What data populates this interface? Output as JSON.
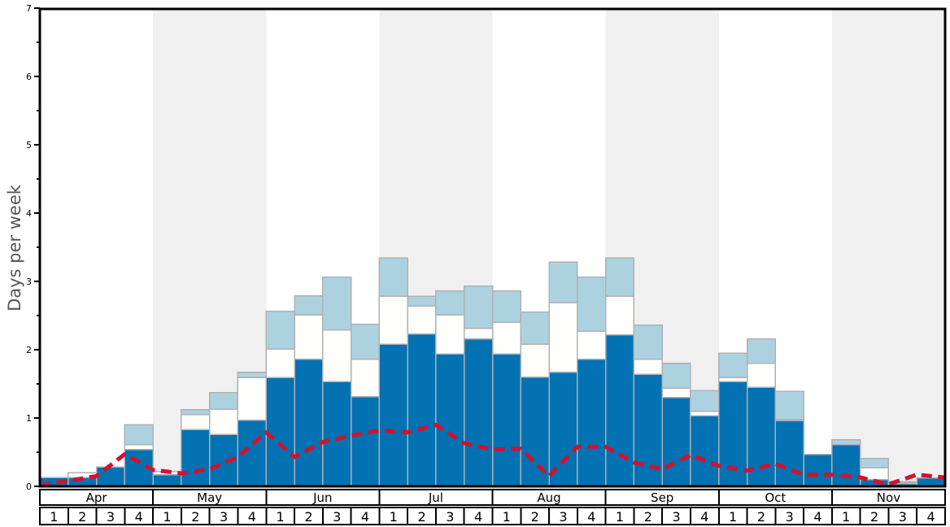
{
  "chart": {
    "ylabel": "Days per week",
    "colors": {
      "dark_blue": "#0272b2",
      "white_band": "#fefefc",
      "pale_blue": "#acd2e0",
      "bar_border": "#b0b0b4",
      "band_gray": "#f0f0f0",
      "red_line": "#d11230",
      "axis_black": "#000000",
      "label_gray": "#555555",
      "row_fill": "#ffffff"
    }
  },
  "chart_data": {
    "type": "bar",
    "stacked": true,
    "title": "",
    "xlabel": "",
    "ylabel": "Days per week",
    "ylim": [
      0,
      7
    ],
    "yticks": [
      0,
      1,
      2,
      3,
      4,
      5,
      6,
      7
    ],
    "ytick_labels": [
      "0",
      "1",
      "2",
      "3",
      "4",
      "5",
      "6",
      "7"
    ],
    "minor_ytick_step": 0.5,
    "grid": false,
    "legend": "none",
    "months": [
      {
        "label": "Apr",
        "weeks": [
          "1",
          "2",
          "3",
          "4"
        ],
        "shaded": false
      },
      {
        "label": "May",
        "weeks": [
          "1",
          "2",
          "3",
          "4"
        ],
        "shaded": true
      },
      {
        "label": "Jun",
        "weeks": [
          "1",
          "2",
          "3",
          "4"
        ],
        "shaded": false
      },
      {
        "label": "Jul",
        "weeks": [
          "1",
          "2",
          "3",
          "4"
        ],
        "shaded": true
      },
      {
        "label": "Aug",
        "weeks": [
          "1",
          "2",
          "3",
          "4"
        ],
        "shaded": false
      },
      {
        "label": "Sep",
        "weeks": [
          "1",
          "2",
          "3",
          "4"
        ],
        "shaded": true
      },
      {
        "label": "Oct",
        "weeks": [
          "1",
          "2",
          "3",
          "4"
        ],
        "shaded": false
      },
      {
        "label": "Nov",
        "weeks": [
          "1",
          "2",
          "3",
          "4"
        ],
        "shaded": true
      }
    ],
    "bars": [
      {
        "month": "Apr",
        "week": "1",
        "dark_top": 0.13,
        "white_top": 0.13,
        "total": 0.13
      },
      {
        "month": "Apr",
        "week": "2",
        "dark_top": 0.13,
        "white_top": 0.2,
        "total": 0.2
      },
      {
        "month": "Apr",
        "week": "3",
        "dark_top": 0.28,
        "white_top": 0.28,
        "total": 0.28
      },
      {
        "month": "Apr",
        "week": "4",
        "dark_top": 0.54,
        "white_top": 0.61,
        "total": 0.9
      },
      {
        "month": "May",
        "week": "1",
        "dark_top": 0.17,
        "white_top": 0.22,
        "total": 0.22
      },
      {
        "month": "May",
        "week": "2",
        "dark_top": 0.83,
        "white_top": 1.05,
        "total": 1.12
      },
      {
        "month": "May",
        "week": "3",
        "dark_top": 0.76,
        "white_top": 1.13,
        "total": 1.37
      },
      {
        "month": "May",
        "week": "4",
        "dark_top": 0.97,
        "white_top": 1.59,
        "total": 1.67
      },
      {
        "month": "Jun",
        "week": "1",
        "dark_top": 1.59,
        "white_top": 2.01,
        "total": 2.56
      },
      {
        "month": "Jun",
        "week": "2",
        "dark_top": 1.86,
        "white_top": 2.51,
        "total": 2.79
      },
      {
        "month": "Jun",
        "week": "3",
        "dark_top": 1.53,
        "white_top": 2.29,
        "total": 3.06
      },
      {
        "month": "Jun",
        "week": "4",
        "dark_top": 1.31,
        "white_top": 1.86,
        "total": 2.37
      },
      {
        "month": "Jul",
        "week": "1",
        "dark_top": 2.08,
        "white_top": 2.78,
        "total": 3.34
      },
      {
        "month": "Jul",
        "week": "2",
        "dark_top": 2.23,
        "white_top": 2.64,
        "total": 2.78
      },
      {
        "month": "Jul",
        "week": "3",
        "dark_top": 1.94,
        "white_top": 2.51,
        "total": 2.86
      },
      {
        "month": "Jul",
        "week": "4",
        "dark_top": 2.16,
        "white_top": 2.31,
        "total": 2.93
      },
      {
        "month": "Aug",
        "week": "1",
        "dark_top": 1.94,
        "white_top": 2.4,
        "total": 2.86
      },
      {
        "month": "Aug",
        "week": "2",
        "dark_top": 1.6,
        "white_top": 2.08,
        "total": 2.55
      },
      {
        "month": "Aug",
        "week": "3",
        "dark_top": 1.67,
        "white_top": 2.69,
        "total": 3.28
      },
      {
        "month": "Aug",
        "week": "4",
        "dark_top": 1.86,
        "white_top": 2.27,
        "total": 3.06
      },
      {
        "month": "Sep",
        "week": "1",
        "dark_top": 2.22,
        "white_top": 2.78,
        "total": 3.34
      },
      {
        "month": "Sep",
        "week": "2",
        "dark_top": 1.64,
        "white_top": 1.86,
        "total": 2.36
      },
      {
        "month": "Sep",
        "week": "3",
        "dark_top": 1.3,
        "white_top": 1.44,
        "total": 1.8
      },
      {
        "month": "Sep",
        "week": "4",
        "dark_top": 1.03,
        "white_top": 1.1,
        "total": 1.4
      },
      {
        "month": "Oct",
        "week": "1",
        "dark_top": 1.53,
        "white_top": 1.59,
        "total": 1.95
      },
      {
        "month": "Oct",
        "week": "2",
        "dark_top": 1.45,
        "white_top": 1.8,
        "total": 2.16
      },
      {
        "month": "Oct",
        "week": "3",
        "dark_top": 0.96,
        "white_top": 0.98,
        "total": 1.39
      },
      {
        "month": "Oct",
        "week": "4",
        "dark_top": 0.47,
        "white_top": 0.47,
        "total": 0.47
      },
      {
        "month": "Nov",
        "week": "1",
        "dark_top": 0.61,
        "white_top": 0.61,
        "total": 0.68
      },
      {
        "month": "Nov",
        "week": "2",
        "dark_top": 0.1,
        "white_top": 0.27,
        "total": 0.41
      },
      {
        "month": "Nov",
        "week": "3",
        "dark_top": 0.04,
        "white_top": 0.05,
        "total": 0.07
      },
      {
        "month": "Nov",
        "week": "4",
        "dark_top": 0.12,
        "white_top": 0.12,
        "total": 0.13
      }
    ],
    "red_line": {
      "style": "dashed",
      "x_unit": "week-edges (0 = start of Apr wk1, 32 = end of Nov wk4)",
      "values_at_week_edges": [
        0.02,
        0.08,
        0.15,
        0.47,
        0.24,
        0.19,
        0.25,
        0.43,
        0.79,
        0.43,
        0.65,
        0.74,
        0.82,
        0.79,
        0.9,
        0.63,
        0.54,
        0.55,
        0.15,
        0.58,
        0.58,
        0.35,
        0.25,
        0.46,
        0.3,
        0.23,
        0.33,
        0.17,
        0.17,
        0.13,
        0.03,
        0.17,
        0.13
      ]
    }
  }
}
